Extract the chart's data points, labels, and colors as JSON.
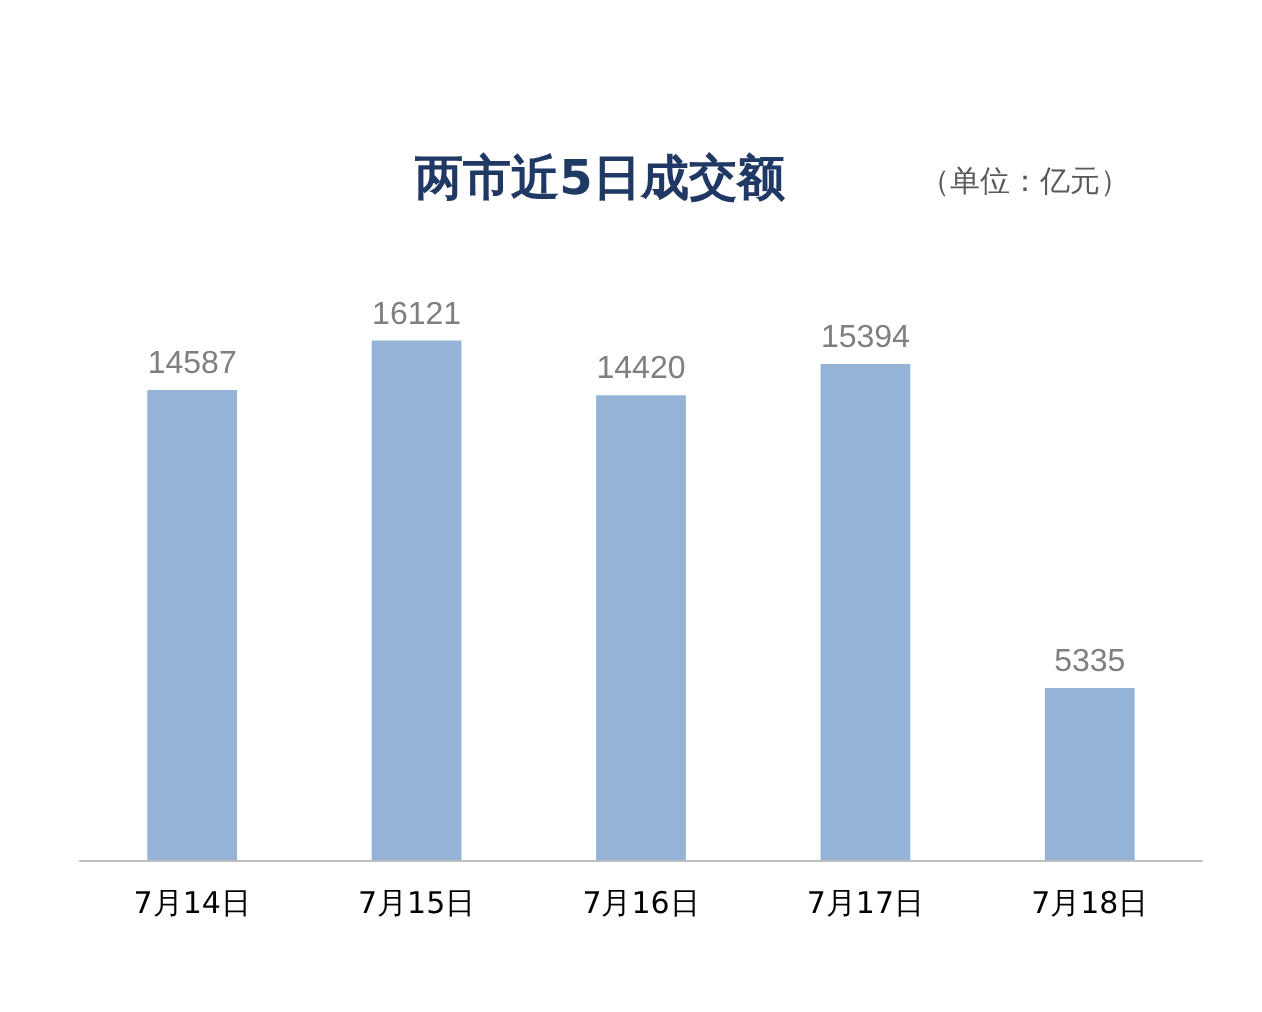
{
  "chart_data": {
    "type": "bar",
    "title": "两市近5日成交额",
    "subtitle": "（单位：亿元）",
    "categories": [
      "7月14日",
      "7月15日",
      "7月16日",
      "7月17日",
      "7月18日"
    ],
    "values": [
      14587,
      16121,
      14420,
      15394,
      5335
    ],
    "color": "#95b3d7",
    "data_labels": true
  }
}
